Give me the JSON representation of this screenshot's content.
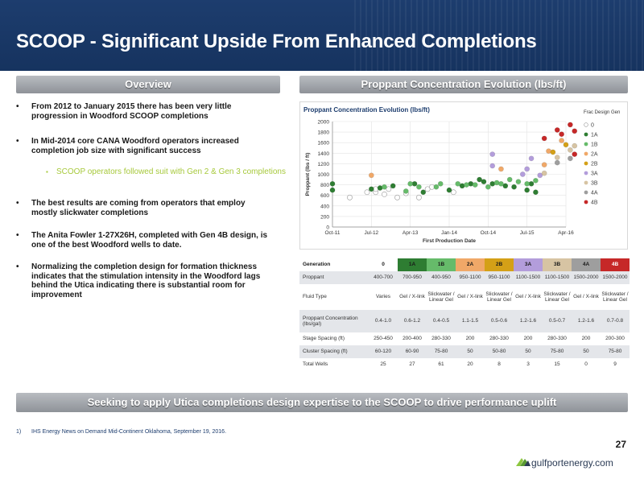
{
  "header": {
    "title": "SCOOP - Significant Upside From Enhanced Completions"
  },
  "overview": {
    "heading": "Overview",
    "bullets": [
      "From 2012 to January 2015 there has been very little progression in Woodford SCOOP completions",
      "In Mid-2014 core CANA Woodford operators increased completion job size with significant success",
      "The best results are coming from operators that employ mostly slickwater completions",
      "The Anita Fowler 1-27X26H, completed with Gen 4B design, is one of the best Woodford wells to date.",
      "Normalizing the completion design for formation thickness indicates that the stimulation intensity in the Woodford lags behind the Utica indicating there is substantial room for improvement"
    ],
    "sub_bullet": "SCOOP operators followed suit with Gen 2 & Gen 3 completions",
    "bullet_glyph": "•",
    "sub_bullet_glyph": "▪"
  },
  "proppant": {
    "heading": "Proppant Concentration Evolution (lbs/ft)"
  },
  "chart_data": {
    "type": "scatter",
    "title": "Proppant Concentration Evolution (lbs/ft)",
    "xlabel": "First Production Date",
    "ylabel": "Proppant (lbs / ft)",
    "x_ticks": [
      "Oct-11",
      "Jul-12",
      "Apr-13",
      "Jan-14",
      "Oct-14",
      "Jul-15",
      "Apr-16"
    ],
    "ylim": [
      0,
      2000
    ],
    "y_ticks": [
      0,
      200,
      400,
      600,
      800,
      1000,
      1200,
      1400,
      1600,
      1800,
      2000
    ],
    "grid": true,
    "legend_position": "right",
    "legend_title": "Frac Design Gen",
    "series": [
      {
        "name": "0",
        "color": "#ffffff",
        "stroke": "#999999",
        "points": [
          [
            "2012-02",
            560
          ],
          [
            "2012-06",
            660
          ],
          [
            "2012-08",
            660
          ],
          [
            "2012-08",
            720
          ],
          [
            "2012-10",
            620
          ],
          [
            "2012-11",
            720
          ],
          [
            "2013-01",
            560
          ],
          [
            "2013-03",
            640
          ],
          [
            "2013-06",
            560
          ],
          [
            "2013-08",
            720
          ],
          [
            "2013-09",
            760
          ],
          [
            "2014-02",
            660
          ]
        ]
      },
      {
        "name": "1A",
        "color": "#2e7d32",
        "points": [
          [
            "2011-10",
            820
          ],
          [
            "2011-10",
            700
          ],
          [
            "2012-07",
            720
          ],
          [
            "2012-09",
            740
          ],
          [
            "2012-12",
            780
          ],
          [
            "2013-05",
            820
          ],
          [
            "2013-07",
            660
          ],
          [
            "2014-01",
            700
          ],
          [
            "2014-04",
            780
          ],
          [
            "2014-06",
            820
          ],
          [
            "2014-08",
            900
          ],
          [
            "2014-09",
            860
          ],
          [
            "2014-11",
            820
          ],
          [
            "2015-02",
            780
          ],
          [
            "2015-04",
            760
          ],
          [
            "2015-07",
            700
          ],
          [
            "2015-08",
            820
          ],
          [
            "2015-09",
            660
          ]
        ]
      },
      {
        "name": "1B",
        "color": "#66bb6a",
        "points": [
          [
            "2012-10",
            760
          ],
          [
            "2013-03",
            680
          ],
          [
            "2013-04",
            820
          ],
          [
            "2013-06",
            760
          ],
          [
            "2013-10",
            760
          ],
          [
            "2013-11",
            820
          ],
          [
            "2014-03",
            820
          ],
          [
            "2014-05",
            800
          ],
          [
            "2014-07",
            800
          ],
          [
            "2014-10",
            760
          ],
          [
            "2014-12",
            840
          ],
          [
            "2015-01",
            820
          ],
          [
            "2015-03",
            900
          ],
          [
            "2015-05",
            860
          ],
          [
            "2015-07",
            820
          ],
          [
            "2015-09",
            880
          ]
        ]
      },
      {
        "name": "2A",
        "color": "#f0a868",
        "points": [
          [
            "2012-07",
            980
          ],
          [
            "2015-01",
            1100
          ],
          [
            "2015-12",
            1440
          ],
          [
            "2015-11",
            1180
          ],
          [
            "2016-03",
            1640
          ]
        ]
      },
      {
        "name": "2B",
        "color": "#d4a017",
        "points": [
          [
            "2016-01",
            1420
          ],
          [
            "2016-04",
            1560
          ]
        ]
      },
      {
        "name": "3A",
        "color": "#b39ddb",
        "points": [
          [
            "2014-11",
            1380
          ],
          [
            "2014-11",
            1160
          ],
          [
            "2015-06",
            1000
          ],
          [
            "2015-08",
            1300
          ],
          [
            "2015-10",
            980
          ],
          [
            "2015-07",
            1100
          ]
        ]
      },
      {
        "name": "3B",
        "color": "#d7c4a3",
        "points": [
          [
            "2015-11",
            1020
          ],
          [
            "2016-02",
            1320
          ],
          [
            "2016-05",
            1460
          ],
          [
            "2016-06",
            1540
          ]
        ]
      },
      {
        "name": "4A",
        "color": "#9e9e9e",
        "points": [
          [
            "2016-02",
            1220
          ],
          [
            "2016-05",
            1300
          ]
        ]
      },
      {
        "name": "4B",
        "color": "#c62828",
        "points": [
          [
            "2015-11",
            1680
          ],
          [
            "2016-02",
            1840
          ],
          [
            "2016-03",
            1760
          ],
          [
            "2016-06",
            1820
          ],
          [
            "2016-05",
            1940
          ],
          [
            "2016-06",
            1380
          ]
        ]
      }
    ]
  },
  "table": {
    "header": {
      "label": "Generation",
      "gens": [
        "0",
        "1A",
        "1B",
        "2A",
        "2B",
        "3A",
        "3B",
        "4A",
        "4B"
      ],
      "colors": [
        "#ffffff",
        "#2e7d32",
        "#66bb6a",
        "#f0a868",
        "#d4a017",
        "#b39ddb",
        "#d7c4a3",
        "#9e9e9e",
        "#c62828"
      ]
    },
    "rows": [
      {
        "label": "Proppant",
        "values": [
          "400-700",
          "700-950",
          "400-950",
          "950-1100",
          "950-1100",
          "1100-1500",
          "1100-1500",
          "1500-2000",
          "1500-2000"
        ]
      },
      {
        "label": "Fluid Type",
        "values": [
          "Varies",
          "Gel / X-link",
          "Slickwater / Linear Gel",
          "Gel / X-link",
          "Slickwater / Linear Gel",
          "Gel / X-link",
          "Slickwater / Linear Gel",
          "Gel / X-link",
          "Slickwater / Linear Gel"
        ]
      },
      {
        "label": "Proppant Concentration (lbs/gal)",
        "values": [
          "0.4-1.0",
          "0.6-1.2",
          "0.4-0.5",
          "1.1-1.5",
          "0.5-0.6",
          "1.2-1.6",
          "0.5-0.7",
          "1.2-1.6",
          "0.7-0.8"
        ]
      },
      {
        "label": "Stage Spacing (ft)",
        "values": [
          "250-450",
          "200-400",
          "280-330",
          "200",
          "280-330",
          "200",
          "280-330",
          "200",
          "200-300"
        ]
      },
      {
        "label": "Cluster Spacing (ft)",
        "values": [
          "60-120",
          "60-90",
          "75-80",
          "50",
          "50-80",
          "50",
          "75-80",
          "50",
          "75-80"
        ]
      },
      {
        "label": "Total Wells",
        "values": [
          "25",
          "27",
          "61",
          "20",
          "8",
          "3",
          "15",
          "0",
          "9"
        ]
      }
    ]
  },
  "banner": {
    "text": "Seeking to apply Utica completions design expertise to the SCOOP to drive performance uplift"
  },
  "footnote": {
    "number": "1)",
    "text": "IHS Energy News on Demand Mid-Continent Oklahoma, September 19, 2016."
  },
  "page_number": "27",
  "logo": {
    "wordmark_dark": "gulfport",
    "wordmark_light": "energy.com",
    "icon": "gulfport-wave-icon"
  }
}
